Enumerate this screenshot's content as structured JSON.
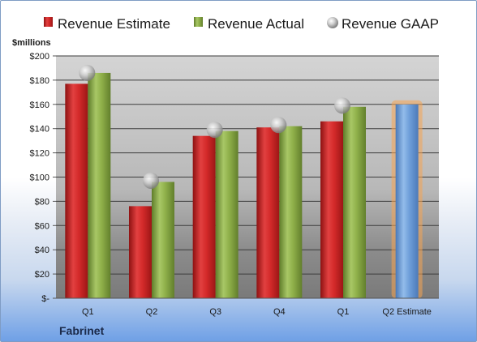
{
  "chart_data": {
    "type": "bar",
    "company": "Fabrinet",
    "unit_label": "$millions",
    "categories": [
      "Q1",
      "Q2",
      "Q3",
      "Q4",
      "Q1",
      "Q2 Estimate"
    ],
    "series": [
      {
        "name": "Revenue Estimate",
        "kind": "bar",
        "values": [
          177,
          76,
          134,
          141,
          146,
          null
        ]
      },
      {
        "name": "Revenue Actual",
        "kind": "bar",
        "values": [
          186,
          96,
          138,
          142,
          158,
          160
        ]
      },
      {
        "name": "Revenue GAAP",
        "kind": "marker",
        "values": [
          186,
          97,
          139,
          143,
          159,
          null
        ]
      }
    ],
    "ylim": [
      0,
      200
    ],
    "ytick_step": 20,
    "ytick_labels": [
      "$-",
      "$20",
      "$40",
      "$60",
      "$80",
      "$100",
      "$120",
      "$140",
      "$160",
      "$180",
      "$200"
    ],
    "grid": true,
    "legend_position": "top",
    "colors": {
      "estimate": "#d42a2a",
      "actual": "#8fb04a",
      "gaap": "#c4c4c4",
      "forecast": "#6f9fda",
      "forecast_glow": "#f5a452"
    }
  }
}
